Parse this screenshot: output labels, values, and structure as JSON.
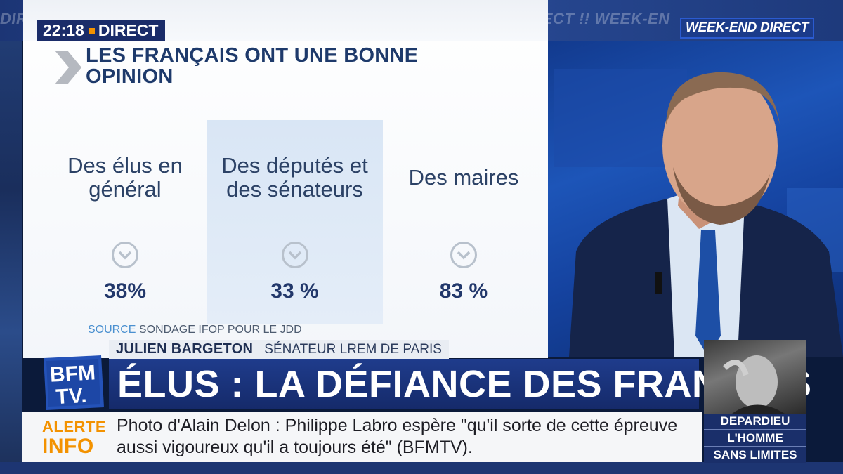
{
  "ticker": {
    "background_text": "DIRECT  ⁞⁞ WEEK-END DIRECT  ⁞⁞ WEEK-END DIRECT  ⁞⁞ WEEK-END DIRECT  ⁞⁞ WEEK-EN"
  },
  "clock": {
    "time": "22:18",
    "label": "DIRECT"
  },
  "panel": {
    "headline": "LES FRANÇAIS ONT UNE BONNE OPINION",
    "columns": [
      {
        "label": "Des élus en général",
        "value": "38%",
        "icon": "chevron-down-icon"
      },
      {
        "label": "Des députés et des sénateurs",
        "value": "33 %",
        "icon": "chevron-down-icon"
      },
      {
        "label": "Des maires",
        "value": "83 %",
        "icon": "chevron-down-icon"
      }
    ],
    "source_word": "SOURCE",
    "source_text": "SONDAGE IFOP POUR LE JDD"
  },
  "guest": {
    "name": "JULIEN BARGETON",
    "role": "SÉNATEUR LREM DE PARIS"
  },
  "show_badge": "WEEK-END DIRECT",
  "logo": {
    "line1": "BFM",
    "line2": "TV."
  },
  "title": {
    "text": "ÉLUS : LA DÉFIANCE DES FRANÇAIS"
  },
  "alert": {
    "label_line1": "ALERTE",
    "label_line2": "INFO",
    "text": "Photo d'Alain Delon : Philippe Labro espère \"qu'il sorte de cette épreuve aussi vigoureux qu'il a toujours été\" (BFMTV)."
  },
  "promo": {
    "line1": "DEPARDIEU",
    "line2": "L'HOMME",
    "line3": "SANS LIMITES"
  },
  "colors": {
    "navy": "#1a2c69",
    "accent_orange": "#f39200",
    "text_blue": "#1e3a6b",
    "highlight": "#d9e6f5"
  }
}
